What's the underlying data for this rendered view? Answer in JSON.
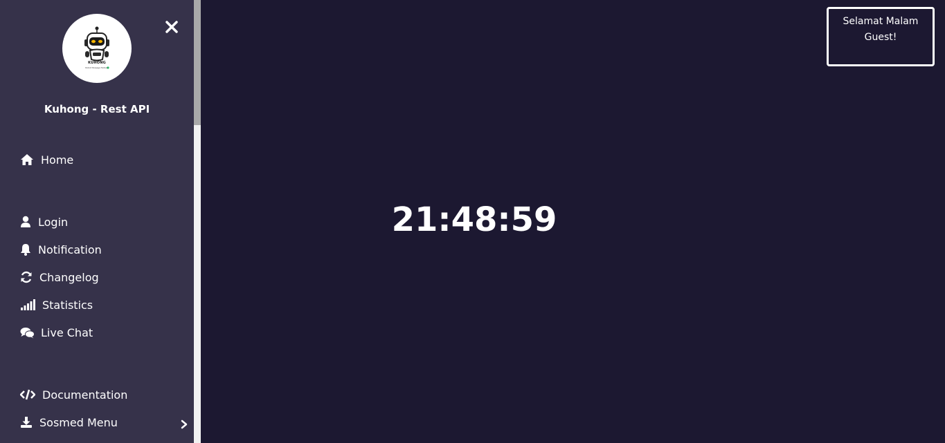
{
  "sidebar": {
    "avatar": {
      "brand": "KUHONG",
      "tagline": "Robot Penjaga Terbaik"
    },
    "title": "Kuhong - Rest API",
    "close_icon": "close-icon",
    "items": [
      {
        "label": "Home",
        "icon": "home-icon"
      },
      {
        "label": "Login",
        "icon": "user-icon"
      },
      {
        "label": "Notification",
        "icon": "bell-icon"
      },
      {
        "label": "Changelog",
        "icon": "refresh-icon"
      },
      {
        "label": "Statistics",
        "icon": "signal-bars-icon"
      },
      {
        "label": "Live Chat",
        "icon": "chat-bubbles-icon"
      },
      {
        "label": "Documentation",
        "icon": "code-icon"
      },
      {
        "label": "Sosmed Menu",
        "icon": "download-icon",
        "has_submenu": true
      }
    ]
  },
  "main": {
    "clock": "21:48:59",
    "greeting": {
      "line1": "Selamat Malam",
      "line2": "Guest!"
    }
  },
  "colors": {
    "background": "#1c1831",
    "sidebar": "#36324a",
    "text": "#ffffff",
    "scrollbar_track": "#f1f1f1",
    "scrollbar_thumb": "#a9a9a9"
  }
}
